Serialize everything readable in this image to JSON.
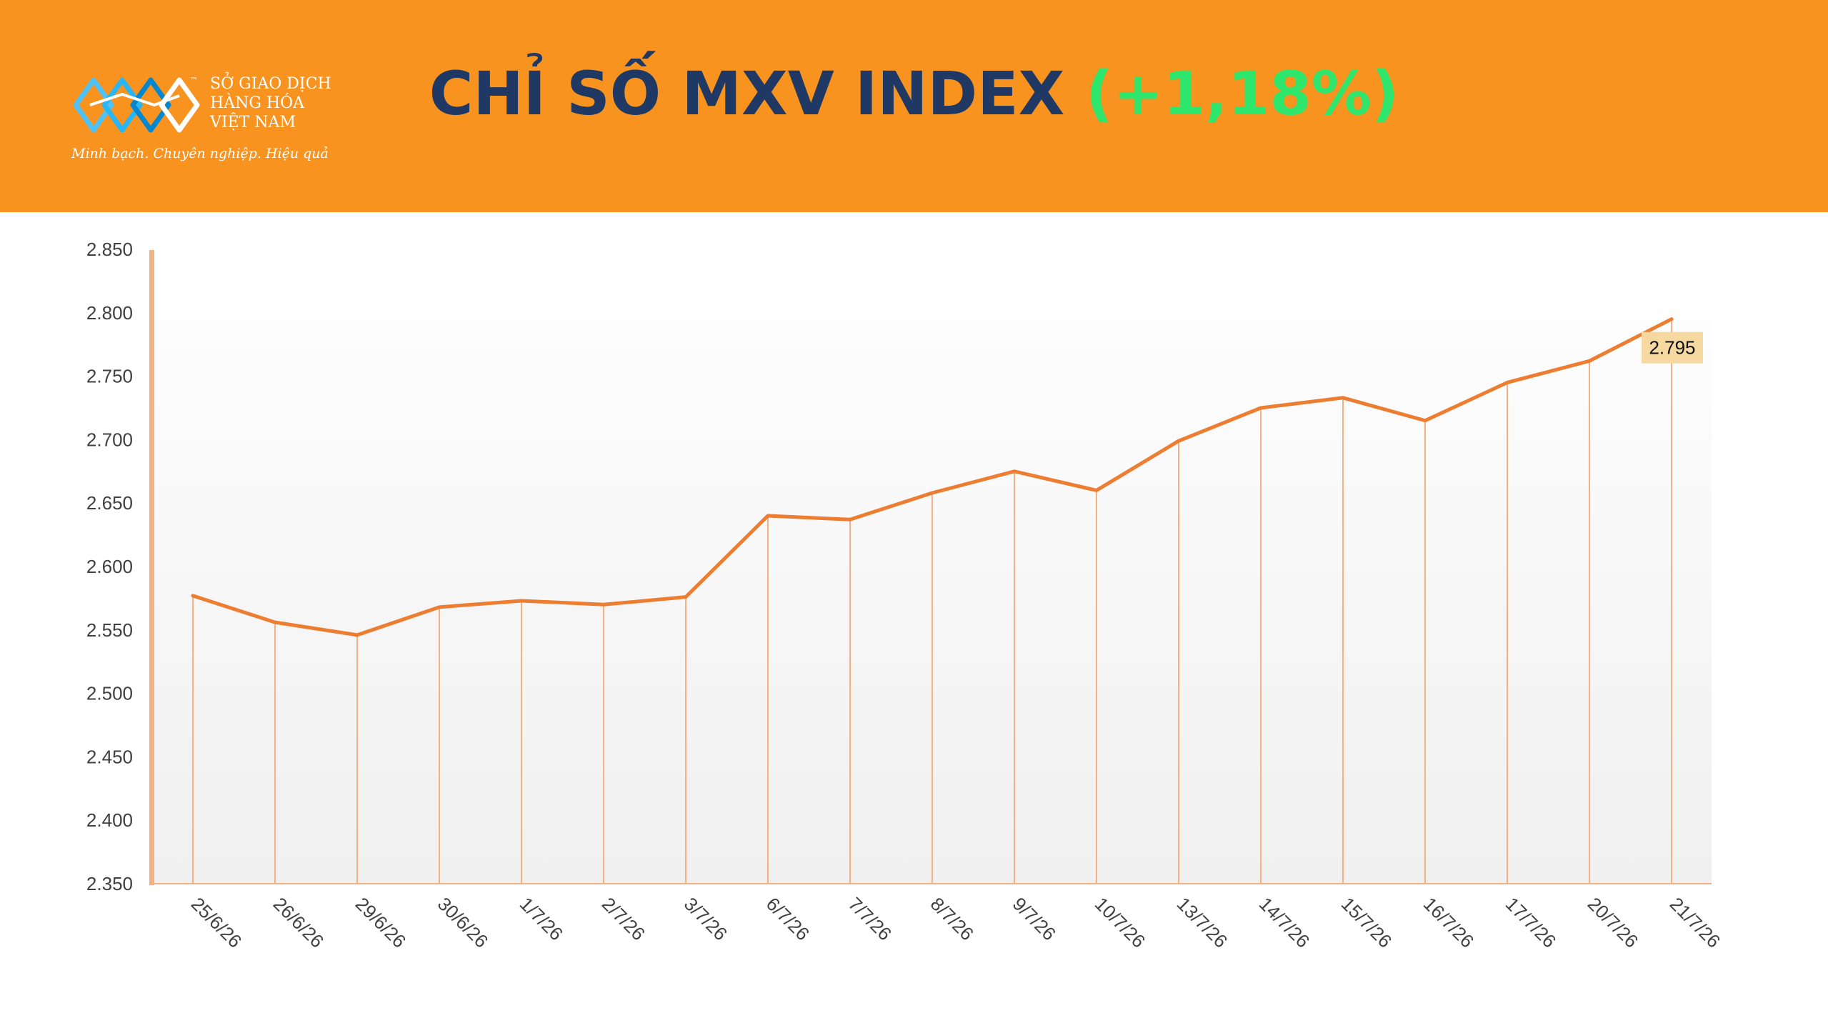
{
  "header": {
    "logo": {
      "name_lines": [
        "SỞ GIAO DỊCH",
        "HÀNG HÓA",
        "VIỆT NAM"
      ],
      "trademark": "™",
      "tagline": "Minh bạch. Chuyên nghiệp. Hiệu quả"
    },
    "title": "CHỈ SỐ MXV INDEX",
    "change": "(+1,18%)"
  },
  "colors": {
    "header_bg": "#f7931e",
    "title_text": "#1f3864",
    "change_text": "#2ee66b",
    "line": "#ed7d31",
    "drop_lines": "#f4b183",
    "axis_bar": "#f4b183",
    "label_bg": "#f5d9a0"
  },
  "chart_data": {
    "type": "line",
    "title": "",
    "xlabel": "",
    "ylabel": "",
    "ylim": [
      2350,
      2850
    ],
    "y_ticks": [
      "2.350",
      "2.400",
      "2.450",
      "2.500",
      "2.550",
      "2.600",
      "2.650",
      "2.700",
      "2.750",
      "2.800",
      "2.850"
    ],
    "y_tick_values": [
      2350,
      2400,
      2450,
      2500,
      2550,
      2600,
      2650,
      2700,
      2750,
      2800,
      2850
    ],
    "categories": [
      "25/6/26",
      "26/6/26",
      "29/6/26",
      "30/6/26",
      "1/7/26",
      "2/7/26",
      "3/7/26",
      "6/7/26",
      "7/7/26",
      "8/7/26",
      "9/7/26",
      "10/7/26",
      "13/7/26",
      "14/7/26",
      "15/7/26",
      "16/7/26",
      "17/7/26",
      "20/7/26",
      "21/7/26"
    ],
    "values": [
      2577,
      2556,
      2546,
      2568,
      2573,
      2570,
      2576,
      2640,
      2637,
      2658,
      2675,
      2660,
      2699,
      2725,
      2733,
      2715,
      2745,
      2762,
      2795
    ],
    "data_labels": [
      {
        "index": 18,
        "text": "2.795"
      }
    ],
    "grid": false,
    "drop_lines": true,
    "legend": "none"
  }
}
